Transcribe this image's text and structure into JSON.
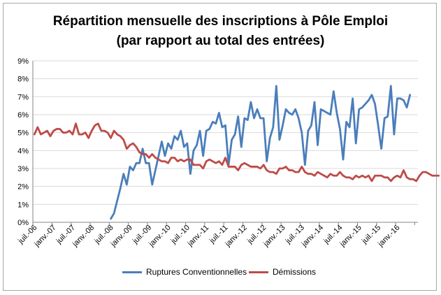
{
  "chart_data": {
    "type": "line",
    "title": [
      "Répartition mensuelle des inscriptions à Pôle Emploi",
      "(par rapport au total des entrées)"
    ],
    "xlabel": "",
    "ylabel": "",
    "ylim": [
      0,
      9
    ],
    "y_ticks": [
      "0%",
      "1%",
      "2%",
      "3%",
      "4%",
      "5%",
      "6%",
      "7%",
      "8%",
      "9%"
    ],
    "x_ticks": [
      "juil.-06",
      "janv.-07",
      "juil.-07",
      "janv.-08",
      "juil.-08",
      "janv.-09",
      "juil.-09",
      "janv.-10",
      "juil.-10",
      "janv.-11",
      "juil.-11",
      "janv.-12",
      "juil.-12",
      "janv.-13",
      "juil.-13",
      "janv.-14",
      "juil.-14",
      "janv.-15",
      "juil.-15",
      "janv.-16"
    ],
    "grid": true,
    "legend_position": "bottom",
    "series": [
      {
        "name": "Ruptures Conventionnelles",
        "color": "#4a7ebb",
        "start_month_index": 24,
        "values": [
          0.2,
          0.5,
          1.2,
          1.9,
          2.7,
          2.1,
          3.1,
          2.9,
          3.3,
          3.3,
          4.1,
          3.3,
          3.3,
          2.1,
          2.9,
          3.7,
          4.5,
          3.7,
          4.4,
          4.1,
          4.8,
          4.6,
          5.1,
          4.2,
          4.4,
          2.7,
          4.0,
          4.3,
          5.1,
          3.7,
          5.1,
          5.2,
          5.6,
          5.5,
          6.1,
          5.3,
          5.4,
          3.2,
          4.6,
          4.9,
          5.9,
          4.2,
          5.8,
          5.7,
          6.7,
          5.8,
          6.3,
          5.8,
          5.8,
          3.4,
          4.7,
          5.3,
          7.6,
          4.6,
          5.4,
          6.3,
          6.1,
          6.0,
          6.3,
          5.8,
          5.0,
          3.2,
          5.1,
          5.4,
          6.7,
          4.3,
          6.3,
          6.2,
          6.1,
          6.0,
          7.3,
          6.1,
          5.2,
          3.5,
          5.6,
          5.3,
          6.9,
          4.4,
          6.3,
          6.4,
          6.6,
          6.8,
          7.1,
          6.6,
          5.4,
          4.1,
          5.8,
          5.9,
          7.6,
          4.9,
          6.9,
          6.9,
          6.8,
          6.4,
          7.1
        ]
      },
      {
        "name": "Démissions",
        "color": "#be4b48",
        "start_month_index": 0,
        "values": [
          4.9,
          5.3,
          4.9,
          5.0,
          5.1,
          4.8,
          5.1,
          5.2,
          5.2,
          5.0,
          5.0,
          5.1,
          4.9,
          5.5,
          4.9,
          4.9,
          5.0,
          4.7,
          5.1,
          5.4,
          5.5,
          5.1,
          5.1,
          5.0,
          4.7,
          5.1,
          4.9,
          4.8,
          4.6,
          4.1,
          4.3,
          4.4,
          4.2,
          3.9,
          3.8,
          3.8,
          3.6,
          3.8,
          3.6,
          3.5,
          3.4,
          3.4,
          3.3,
          3.6,
          3.6,
          3.4,
          3.5,
          3.4,
          3.5,
          3.5,
          3.2,
          3.2,
          3.2,
          3.0,
          3.4,
          3.5,
          3.4,
          3.3,
          3.4,
          3.2,
          3.6,
          3.1,
          3.1,
          3.1,
          2.9,
          3.2,
          3.3,
          3.2,
          3.1,
          3.1,
          3.1,
          3.0,
          3.2,
          2.9,
          2.8,
          2.8,
          2.7,
          3.0,
          3.0,
          3.1,
          2.9,
          2.9,
          2.8,
          2.8,
          3.1,
          2.8,
          2.7,
          2.7,
          2.6,
          2.8,
          2.7,
          2.6,
          2.5,
          2.7,
          2.6,
          2.6,
          2.8,
          2.6,
          2.5,
          2.5,
          2.4,
          2.6,
          2.5,
          2.6,
          2.5,
          2.6,
          2.3,
          2.6,
          2.6,
          2.6,
          2.5,
          2.5,
          2.3,
          2.5,
          2.6,
          2.5,
          2.9,
          2.5,
          2.4,
          2.4,
          2.3,
          2.6,
          2.8,
          2.8,
          2.7,
          2.6,
          2.6,
          2.6
        ]
      }
    ]
  }
}
